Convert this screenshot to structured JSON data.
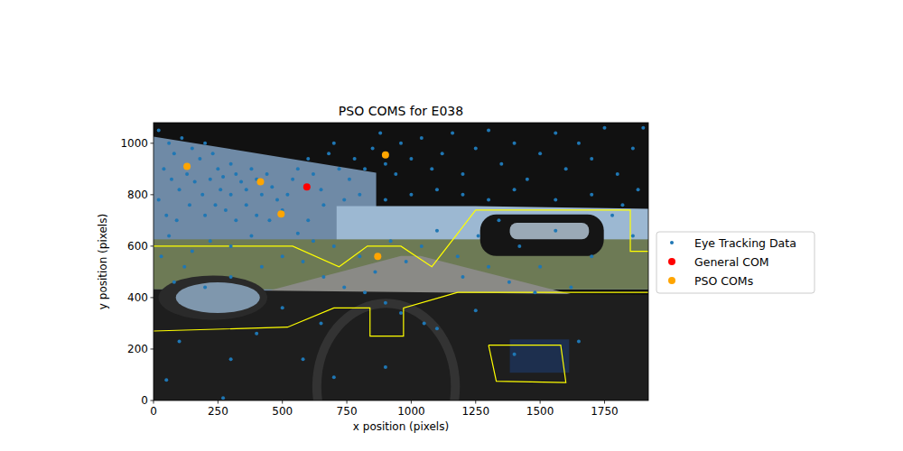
{
  "chart_data": {
    "type": "scatter",
    "title": "PSO COMS for E038",
    "x_label": "x position (pixels)",
    "y_label": "y position (pixels)",
    "xlim": [
      0,
      1920
    ],
    "ylim": [
      0,
      1080
    ],
    "xticks": [
      0,
      250,
      500,
      750,
      1000,
      1250,
      1500,
      1750
    ],
    "yticks": [
      0,
      200,
      400,
      600,
      800,
      1000
    ],
    "grid": false,
    "legend": "outside right",
    "series": [
      {
        "name": "Eye Tracking Data",
        "color": "#1f77b4",
        "marker": "small-dot",
        "x": [
          20,
          60,
          80,
          110,
          150,
          180,
          200,
          230,
          250,
          270,
          300,
          320,
          340,
          360,
          380,
          400,
          420,
          440,
          460,
          480,
          300,
          260,
          220,
          190,
          160,
          130,
          100,
          70,
          40,
          20,
          50,
          90,
          140,
          200,
          240,
          280,
          320,
          360,
          400,
          450,
          500,
          520,
          540,
          560,
          600,
          620,
          650,
          680,
          700,
          720,
          760,
          780,
          820,
          850,
          880,
          900,
          940,
          960,
          1000,
          1040,
          1080,
          1120,
          1160,
          1200,
          1250,
          1300,
          1350,
          1400,
          1450,
          1500,
          1560,
          1600,
          1650,
          1700,
          1750,
          1800,
          1860,
          1900,
          1880,
          1820,
          1700,
          1560,
          1400,
          1300,
          1200,
          1100,
          1000,
          900,
          800,
          740,
          660,
          600,
          560,
          620,
          700,
          800,
          860,
          920,
          980,
          1040,
          1100,
          1180,
          1260,
          1340,
          1420,
          1500,
          1560,
          1620,
          1700,
          1780,
          1860,
          1480,
          1380,
          1300,
          1200,
          380,
          300,
          220,
          150,
          60,
          30,
          120,
          80,
          200,
          300,
          420,
          500,
          580,
          660,
          740,
          820,
          900,
          960,
          1050,
          650,
          500,
          400,
          300,
          270,
          580,
          700,
          900,
          1100,
          1250,
          1650,
          1400,
          100,
          50
        ],
        "values": [
          1050,
          1000,
          960,
          1020,
          980,
          940,
          1000,
          960,
          900,
          870,
          920,
          880,
          850,
          820,
          900,
          860,
          800,
          880,
          830,
          780,
          800,
          820,
          860,
          800,
          850,
          880,
          820,
          860,
          900,
          780,
          720,
          700,
          760,
          720,
          760,
          740,
          700,
          760,
          720,
          700,
          740,
          800,
          860,
          900,
          940,
          880,
          820,
          960,
          1000,
          900,
          860,
          940,
          900,
          980,
          1040,
          920,
          880,
          1000,
          940,
          1020,
          900,
          960,
          1040,
          880,
          980,
          1050,
          920,
          1000,
          860,
          960,
          1040,
          900,
          1000,
          940,
          1060,
          880,
          980,
          1060,
          820,
          760,
          800,
          780,
          820,
          780,
          800,
          820,
          800,
          780,
          800,
          780,
          760,
          700,
          650,
          620,
          600,
          560,
          500,
          620,
          540,
          600,
          660,
          560,
          640,
          700,
          600,
          520,
          660,
          440,
          560,
          720,
          640,
          420,
          460,
          520,
          480,
          640,
          600,
          620,
          580,
          640,
          560,
          520,
          460,
          440,
          480,
          520,
          560,
          540,
          480,
          440,
          420,
          380,
          340,
          300,
          300,
          360,
          260,
          160,
          10,
          160,
          90,
          130,
          280,
          350,
          230,
          180,
          230,
          80
        ]
      },
      {
        "name": "General COM",
        "color": "#ff0000",
        "marker": "dot",
        "x": [
          595
        ],
        "values": [
          830
        ]
      },
      {
        "name": "PSO COMs",
        "color": "#ffa500",
        "marker": "dot",
        "x": [
          130,
          415,
          495,
          900,
          870
        ],
        "values": [
          910,
          850,
          725,
          955,
          560
        ]
      }
    ],
    "regions": [
      {
        "x": [
          0,
          540,
          720,
          830,
          960,
          1080,
          1250,
          1850,
          1850,
          1920
        ],
        "y": [
          600,
          600,
          520,
          600,
          600,
          520,
          740,
          740,
          580,
          580
        ]
      },
      {
        "x": [
          0,
          520,
          700,
          840,
          840,
          970,
          970,
          1180,
          1920
        ],
        "y": [
          270,
          285,
          360,
          360,
          250,
          250,
          360,
          420,
          420
        ]
      },
      {
        "x": [
          1300,
          1580,
          1600,
          1330,
          1300
        ],
        "y": [
          215,
          215,
          70,
          75,
          215
        ]
      }
    ]
  }
}
